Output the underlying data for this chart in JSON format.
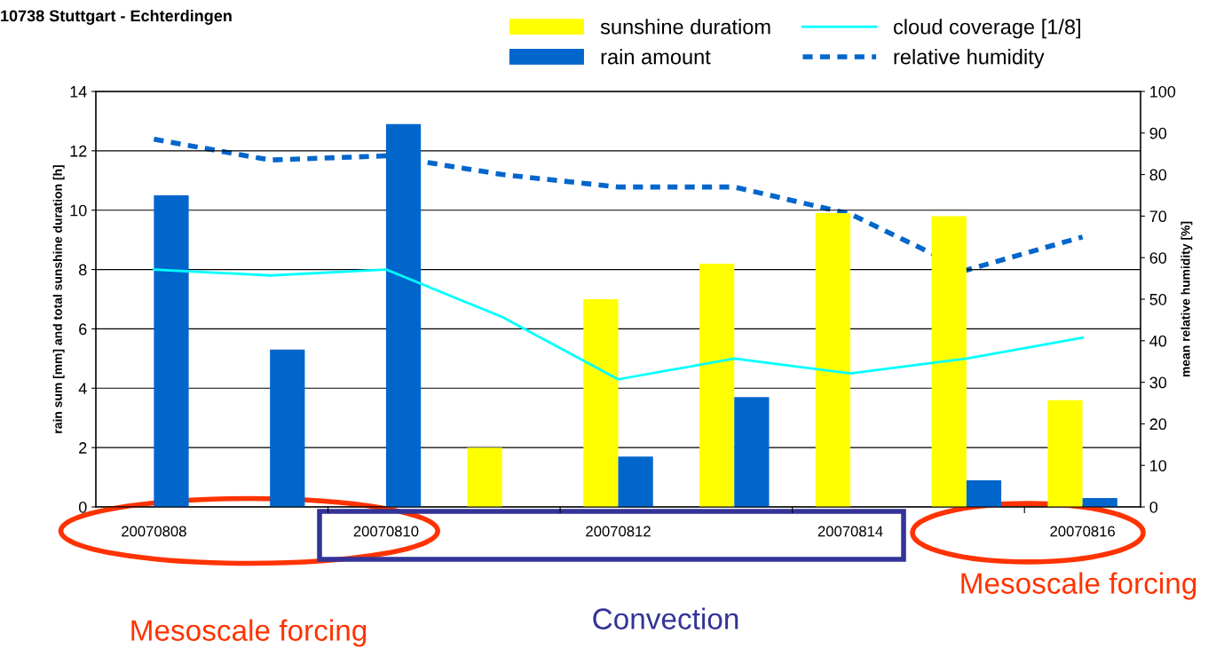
{
  "chart_data": {
    "type": "bar",
    "title": "10738 Stuttgart - Echterdingen",
    "categories": [
      "20070808",
      null,
      "20070810",
      null,
      "20070812",
      null,
      "20070814",
      null,
      "20070816"
    ],
    "series": [
      {
        "name": "sunshine duratiom",
        "color": "#ffff00",
        "values": [
          0,
          0,
          0,
          2.0,
          7.0,
          8.2,
          9.9,
          9.8,
          3.6
        ]
      },
      {
        "name": "rain amount",
        "color": "#0066cc",
        "values": [
          10.5,
          5.3,
          12.9,
          0,
          1.7,
          3.7,
          0,
          0.9,
          0.3
        ]
      },
      {
        "name": "cloud coverage [1/8]",
        "color": "#00ffff",
        "type": "line",
        "line_style": "solid",
        "values": [
          8.0,
          7.8,
          8.0,
          6.4,
          4.3,
          5.0,
          4.5,
          5.0,
          5.7
        ]
      },
      {
        "name": "relative humidity",
        "color": "#0066cc",
        "type": "line",
        "line_style": "dashed",
        "axis": "y2",
        "values": [
          88.5,
          83.5,
          84.5,
          80,
          77,
          77,
          70.5,
          57,
          65
        ]
      }
    ],
    "ylabel": "rain sum [mm] and total sunshine duration [h]",
    "y2label": "mean relative humidity [%]",
    "ylim": [
      0,
      14
    ],
    "yticks": [
      0,
      2,
      4,
      6,
      8,
      10,
      12,
      14
    ],
    "y2lim": [
      0,
      100
    ],
    "y2ticks": [
      0,
      10,
      20,
      30,
      40,
      50,
      60,
      70,
      80,
      90,
      100
    ],
    "grid": "y",
    "legend": "top right",
    "marker": "none",
    "annotations": [
      "Mesoscale forcing",
      "Convection",
      "Mesoscale forcing"
    ]
  }
}
